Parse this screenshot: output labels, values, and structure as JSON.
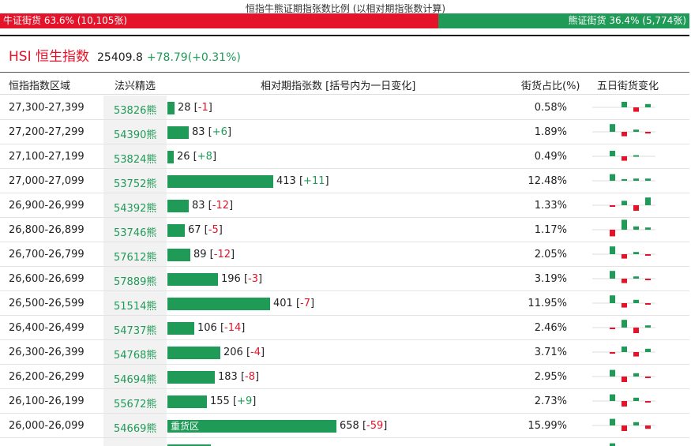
{
  "page_title": "恒指牛熊证期指张数比例 (以相对期指张数计算)",
  "ratio": {
    "bull_label": "牛证街货 63.6% (10,105张)",
    "bear_label": "熊证街货 36.4% (5,774张)",
    "bull_fraction": 0.636,
    "bull_color": "#e5132a",
    "bear_color": "#1f9a57"
  },
  "index": {
    "name": "HSI 恒生指数",
    "price": "25409.8",
    "change": "+78.79(+0.31%)"
  },
  "headers": {
    "range": "恒指指数区域",
    "code": "法兴精选",
    "contracts": "相对期指张数 [括号内为一日变化]",
    "pct": "街货占比(%)",
    "spark": "五日街货变化"
  },
  "rows": [
    {
      "range": "27,300-27,399",
      "code": "53826熊",
      "contracts": 28,
      "contracts_text": "28",
      "change_text": "-1",
      "pct": "0.58%",
      "spark": [
        0,
        0.5,
        -0.4,
        0.3,
        -0.1
      ]
    },
    {
      "range": "27,200-27,299",
      "code": "54390熊",
      "contracts": 83,
      "contracts_text": "83",
      "change_text": "+6",
      "pct": "1.89%",
      "spark": [
        0.7,
        -0.4,
        0.2,
        -0.15,
        0
      ]
    },
    {
      "range": "27,100-27,199",
      "code": "53824熊",
      "contracts": 26,
      "contracts_text": "26",
      "change_text": "+8",
      "pct": "0.49%",
      "spark": [
        0.5,
        -0.4,
        0.1,
        0,
        0.6
      ]
    },
    {
      "range": "27,000-27,099",
      "code": "53752熊",
      "contracts": 413,
      "contracts_text": "413",
      "change_text": "+11",
      "pct": "12.48%",
      "spark": [
        0.6,
        0.15,
        0.2,
        0.2,
        0
      ]
    },
    {
      "range": "26,900-26,999",
      "code": "54392熊",
      "contracts": 83,
      "contracts_text": "83",
      "change_text": "-12",
      "pct": "1.33%",
      "spark": [
        -0.1,
        0.4,
        -0.5,
        0.7,
        -0.4
      ]
    },
    {
      "range": "26,800-26,899",
      "code": "53746熊",
      "contracts": 67,
      "contracts_text": "67",
      "change_text": "-5",
      "pct": "1.17%",
      "spark": [
        -0.6,
        0.9,
        0.3,
        0.2,
        -0.1
      ]
    },
    {
      "range": "26,700-26,799",
      "code": "57612熊",
      "contracts": 89,
      "contracts_text": "89",
      "change_text": "-12",
      "pct": "2.05%",
      "spark": [
        0.7,
        -0.4,
        0.2,
        -0.1,
        0
      ]
    },
    {
      "range": "26,600-26,699",
      "code": "57889熊",
      "contracts": 196,
      "contracts_text": "196",
      "change_text": "-3",
      "pct": "3.19%",
      "spark": [
        0.7,
        -0.4,
        0.2,
        -0.1,
        0
      ]
    },
    {
      "range": "26,500-26,599",
      "code": "51514熊",
      "contracts": 401,
      "contracts_text": "401",
      "change_text": "-7",
      "pct": "11.95%",
      "spark": [
        0.7,
        -0.4,
        0.3,
        -0.1,
        0
      ]
    },
    {
      "range": "26,400-26,499",
      "code": "54737熊",
      "contracts": 106,
      "contracts_text": "106",
      "change_text": "-14",
      "pct": "2.46%",
      "spark": [
        -0.1,
        0.7,
        -0.5,
        0.2,
        -0.1
      ]
    },
    {
      "range": "26,300-26,399",
      "code": "54768熊",
      "contracts": 206,
      "contracts_text": "206",
      "change_text": "-4",
      "pct": "3.71%",
      "spark": [
        -0.15,
        0.5,
        -0.4,
        0.3,
        -0.1
      ]
    },
    {
      "range": "26,200-26,299",
      "code": "54694熊",
      "contracts": 183,
      "contracts_text": "183",
      "change_text": "-8",
      "pct": "2.95%",
      "spark": [
        0.6,
        -0.5,
        0.3,
        -0.1,
        0
      ]
    },
    {
      "range": "26,100-26,199",
      "code": "55672熊",
      "contracts": 155,
      "contracts_text": "155",
      "change_text": "+9",
      "pct": "2.73%",
      "spark": [
        0.6,
        -0.5,
        0.3,
        -0.1,
        0
      ]
    },
    {
      "range": "26,000-26,099",
      "code": "54669熊",
      "contracts": 658,
      "contracts_text": "658",
      "change_text": "-59",
      "pct": "15.99%",
      "bar_label": "重货区",
      "spark": [
        0.6,
        -0.5,
        0.3,
        -0.3,
        0
      ]
    },
    {
      "range": "",
      "code": "",
      "contracts": 170,
      "contracts_text": "",
      "change_text": "",
      "pct": "",
      "spark": [
        0.6,
        -0.5,
        0.3,
        -0.1,
        0
      ]
    }
  ]
}
